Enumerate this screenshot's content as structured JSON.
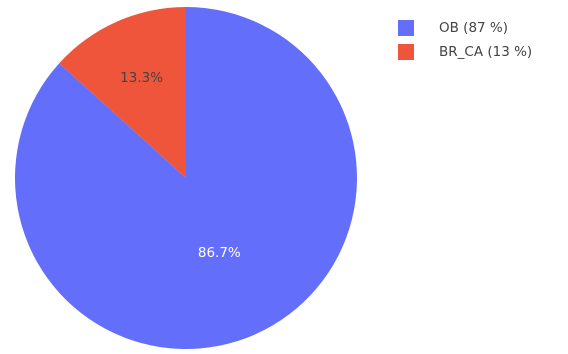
{
  "chart_data": {
    "type": "pie",
    "title": "",
    "slices": [
      {
        "label": "OB",
        "value": 86.7,
        "text": "86.7%",
        "color": "#636efa",
        "text_color": "#ffffff"
      },
      {
        "label": "BR_CA",
        "value": 13.3,
        "text": "13.3%",
        "color": "#ef553b",
        "text_color": "#444444"
      }
    ],
    "legend": {
      "position": "top-right",
      "entries": [
        "OB (87 %)",
        "BR_CA (13 %)"
      ]
    },
    "start_angle_deg": 90,
    "direction": "clockwise"
  }
}
